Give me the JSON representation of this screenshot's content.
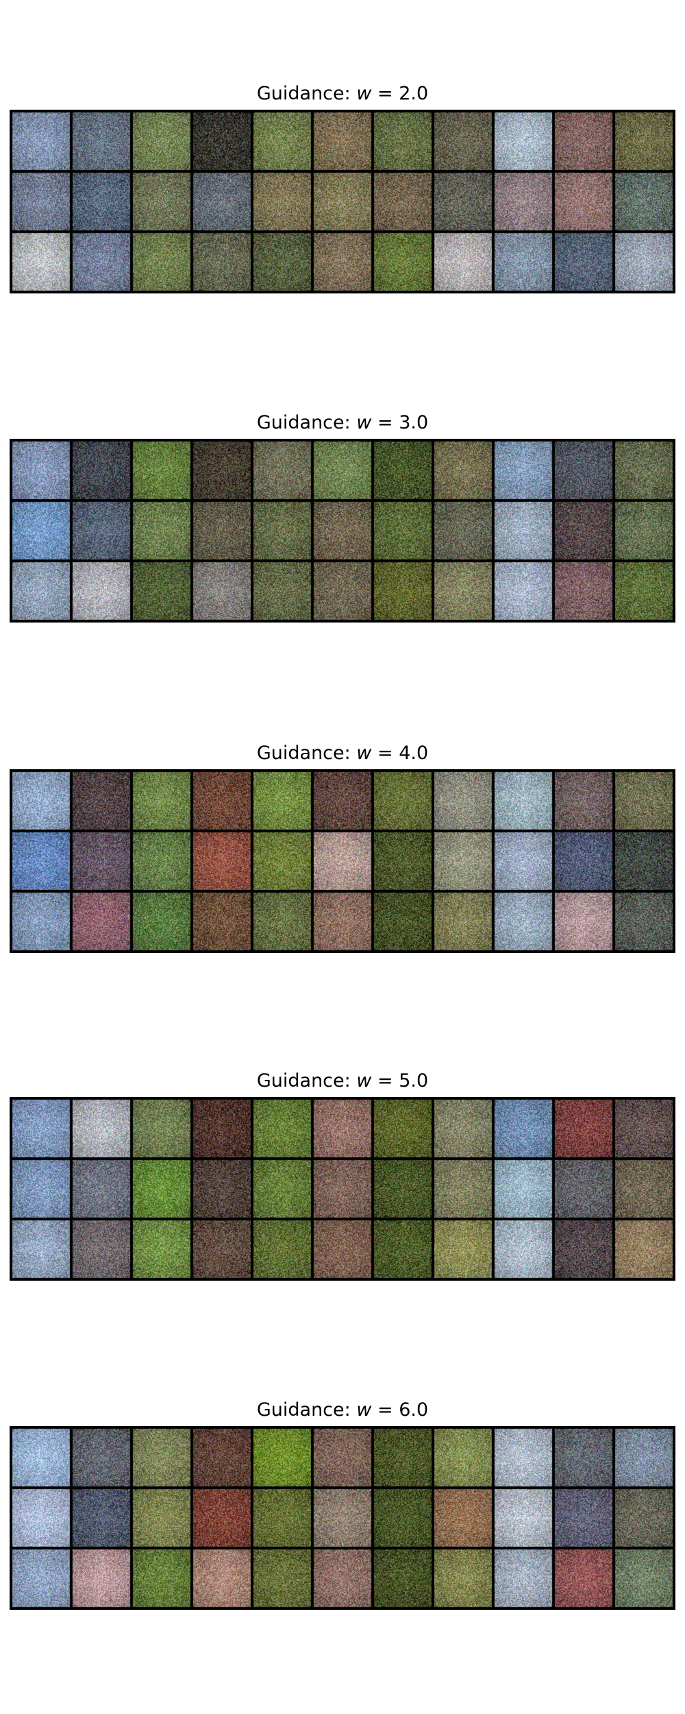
{
  "panels": [
    {
      "title_prefix": "Guidance: ",
      "title_var": "w",
      "title_suffix": " = 2.0",
      "value": 2.0,
      "rows": 3,
      "cols": 11,
      "palette": [
        [
          "#8fa2c2",
          "#6f7d8e",
          "#7f8f5d",
          "#3d3a33",
          "#7d8b54",
          "#8a7a5c",
          "#6f7a4c",
          "#6f6c58",
          "#b7c7d8",
          "#8d6e6a",
          "#77744e"
        ],
        [
          "#7f8aa3",
          "#5f7188",
          "#7a7f60",
          "#6f7680",
          "#8a7f5d",
          "#8d8660",
          "#7e6f58",
          "#6a6a60",
          "#9e8c92",
          "#a07f7c",
          "#6b7a72"
        ],
        [
          "#c9ccd0",
          "#7d8aa6",
          "#7a8a55",
          "#6e7158",
          "#5f6a46",
          "#8a7a62",
          "#6f8240",
          "#c6c2c4",
          "#8e9fb5",
          "#5f6d83",
          "#aab4c4"
        ]
      ]
    },
    {
      "title_prefix": "Guidance: ",
      "title_var": "w",
      "title_suffix": " = 3.0",
      "value": 3.0,
      "rows": 3,
      "cols": 11,
      "palette": [
        [
          "#8fa2c6",
          "#4a4e58",
          "#6f8c45",
          "#4d4536",
          "#7a7a60",
          "#7a8f5a",
          "#4f5f2e",
          "#7f7a58",
          "#8ea8c6",
          "#5a5f6a",
          "#6e7656"
        ],
        [
          "#7fa6d8",
          "#5f6e82",
          "#768a55",
          "#6a6652",
          "#6e7650",
          "#7a6f58",
          "#65753e",
          "#6f705c",
          "#a8b8cc",
          "#5e4f52",
          "#6e7a58"
        ],
        [
          "#9eb0c8",
          "#c0c0c8",
          "#5a6a3c",
          "#8f8a86",
          "#6e7450",
          "#7a705a",
          "#6a7034",
          "#8f8e6a",
          "#b4c2d8",
          "#8a6a6e",
          "#687a40"
        ]
      ]
    },
    {
      "title_prefix": "Guidance: ",
      "title_var": "w",
      "title_suffix": " = 4.0",
      "value": 4.0,
      "rows": 3,
      "cols": 11,
      "palette": [
        [
          "#9eb6d8",
          "#5a4a4e",
          "#7a9250",
          "#7a5040",
          "#7f9a48",
          "#6a4e46",
          "#6f7a3e",
          "#9a9a8a",
          "#a8c0cc",
          "#7a6a6a",
          "#7a7a5a"
        ],
        [
          "#6f94d0",
          "#6e5e6e",
          "#6f8a50",
          "#a05a4a",
          "#7a8a40",
          "#c2a8a0",
          "#55602e",
          "#a0a088",
          "#a8b8d0",
          "#5a6280",
          "#48504a"
        ],
        [
          "#8ea6c8",
          "#9a6a78",
          "#5f8445",
          "#7a5a42",
          "#6f7a4a",
          "#9a7a6a",
          "#4e5a2a",
          "#8c8a5e",
          "#a4b8cc",
          "#c2a4a8",
          "#606660"
        ]
      ]
    },
    {
      "title_prefix": "Guidance: ",
      "title_var": "w",
      "title_suffix": " = 5.0",
      "value": 5.0,
      "rows": 3,
      "cols": 11,
      "palette": [
        [
          "#8ea8d0",
          "#c0c4cc",
          "#7a8a58",
          "#5a3a32",
          "#6f8a3e",
          "#a07a70",
          "#66702e",
          "#8e8e70",
          "#7a9ac0",
          "#8a4a48",
          "#6a5a58"
        ],
        [
          "#8aa6cc",
          "#7a7e8e",
          "#6f9a3e",
          "#5a4a42",
          "#6f8a40",
          "#8a6e62",
          "#52602a",
          "#8a8a66",
          "#a8c4d8",
          "#6a6a70",
          "#7a705a"
        ],
        [
          "#a0b4d0",
          "#7a7276",
          "#7a9a4a",
          "#6a5448",
          "#6a7a3a",
          "#8a6a5a",
          "#56662c",
          "#9a9a5e",
          "#b8c8d8",
          "#5a4e52",
          "#a08a6a"
        ]
      ]
    },
    {
      "title_prefix": "Guidance: ",
      "title_var": "w",
      "title_suffix": " = 6.0",
      "value": 6.0,
      "rows": 3,
      "cols": 11,
      "palette": [
        [
          "#a8c4e8",
          "#6a6e78",
          "#8a9062",
          "#6a4a3e",
          "#7a9a2e",
          "#8a6e62",
          "#55602a",
          "#8e9a5a",
          "#bcc8d8",
          "#6a7078",
          "#8a9ab0"
        ],
        [
          "#b8c8e8",
          "#5a6278",
          "#8a9058",
          "#8a4a3e",
          "#6f7a3a",
          "#9a8a7a",
          "#52602a",
          "#a07a5a",
          "#c4ccd8",
          "#6a6a82",
          "#707060"
        ],
        [
          "#9cb0d0",
          "#c8a4a8",
          "#6f8a40",
          "#b89080",
          "#6f7a3e",
          "#9a7a70",
          "#4e5a28",
          "#8e9056",
          "#b0bccc",
          "#a06060",
          "#7a8a6e"
        ]
      ]
    }
  ]
}
